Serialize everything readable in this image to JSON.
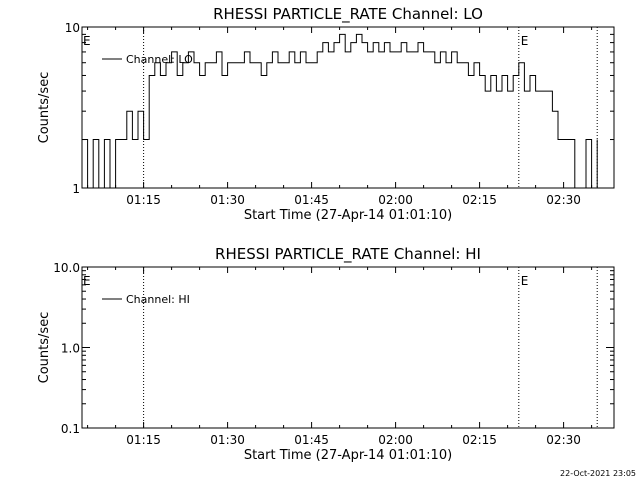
{
  "footer": {
    "timestamp": "22-Oct-2021 23:05"
  },
  "chart_data": [
    {
      "type": "line",
      "title": "RHESSI PARTICLE_RATE Channel: LO",
      "xlabel": "Start Time (27-Apr-14 01:01:10)",
      "ylabel": "Counts/sec",
      "yscale": "log",
      "ylim": [
        1,
        10
      ],
      "yticks": [
        1,
        10
      ],
      "ytick_labels": [
        "1",
        "10"
      ],
      "xlim": [
        "01:04:00",
        "02:39:00"
      ],
      "xtick_labels": [
        "01:15",
        "01:30",
        "01:45",
        "02:00",
        "02:15",
        "02:30"
      ],
      "grid": false,
      "legend_position": "top-left",
      "vlines": [
        {
          "x": "01:15:00",
          "label": ""
        },
        {
          "x": "02:22:00",
          "label": "E"
        },
        {
          "x": "02:36:00",
          "label": ""
        }
      ],
      "corner_label": "E",
      "series": [
        {
          "name": "Channel: LO",
          "x": [
            "01:04:00",
            "01:05:00",
            "01:06:00",
            "01:07:00",
            "01:08:00",
            "01:09:00",
            "01:10:00",
            "01:11:00",
            "01:12:00",
            "01:13:00",
            "01:14:00",
            "01:15:00",
            "01:16:00",
            "01:17:00",
            "01:18:00",
            "01:19:00",
            "01:20:00",
            "01:21:00",
            "01:22:00",
            "01:23:00",
            "01:24:00",
            "01:25:00",
            "01:26:00",
            "01:27:00",
            "01:28:00",
            "01:29:00",
            "01:30:00",
            "01:31:00",
            "01:32:00",
            "01:33:00",
            "01:34:00",
            "01:35:00",
            "01:36:00",
            "01:37:00",
            "01:38:00",
            "01:39:00",
            "01:40:00",
            "01:41:00",
            "01:42:00",
            "01:43:00",
            "01:44:00",
            "01:45:00",
            "01:46:00",
            "01:47:00",
            "01:48:00",
            "01:49:00",
            "01:50:00",
            "01:51:00",
            "01:52:00",
            "01:53:00",
            "01:54:00",
            "01:55:00",
            "01:56:00",
            "01:57:00",
            "01:58:00",
            "01:59:00",
            "02:00:00",
            "02:01:00",
            "02:02:00",
            "02:03:00",
            "02:04:00",
            "02:05:00",
            "02:06:00",
            "02:07:00",
            "02:08:00",
            "02:09:00",
            "02:10:00",
            "02:11:00",
            "02:12:00",
            "02:13:00",
            "02:14:00",
            "02:15:00",
            "02:16:00",
            "02:17:00",
            "02:18:00",
            "02:19:00",
            "02:20:00",
            "02:21:00",
            "02:22:00",
            "02:23:00",
            "02:24:00",
            "02:25:00",
            "02:26:00",
            "02:27:00",
            "02:28:00",
            "02:29:00",
            "02:30:00",
            "02:31:00",
            "02:32:00",
            "02:33:00",
            "02:34:00",
            "02:35:00",
            "02:36:00"
          ],
          "values": [
            2,
            1,
            2,
            1,
            2,
            1,
            2,
            2,
            3,
            2,
            3,
            2,
            5,
            6,
            5,
            6,
            7,
            5,
            6,
            7,
            6,
            5,
            6,
            6,
            7,
            5,
            6,
            6,
            6,
            7,
            6,
            6,
            5,
            6,
            7,
            6,
            6,
            7,
            6,
            7,
            6,
            6,
            7,
            8,
            7,
            8,
            9,
            7,
            8,
            9,
            8,
            7,
            8,
            7,
            8,
            7,
            7,
            8,
            7,
            7,
            8,
            7,
            7,
            6,
            7,
            6,
            7,
            6,
            6,
            5,
            6,
            5,
            4,
            5,
            4,
            5,
            4,
            5,
            6,
            4,
            5,
            4,
            4,
            4,
            3,
            2,
            2,
            2,
            1,
            1,
            2,
            1,
            2
          ]
        }
      ]
    },
    {
      "type": "line",
      "title": "RHESSI PARTICLE_RATE Channel: HI",
      "xlabel": "Start Time (27-Apr-14 01:01:10)",
      "ylabel": "Counts/sec",
      "yscale": "log",
      "ylim": [
        0.1,
        10
      ],
      "yticks": [
        0.1,
        1,
        10
      ],
      "ytick_labels": [
        "0.1",
        "1.0",
        "10.0"
      ],
      "xlim": [
        "01:04:00",
        "02:39:00"
      ],
      "xtick_labels": [
        "01:15",
        "01:30",
        "01:45",
        "02:00",
        "02:15",
        "02:30"
      ],
      "grid": false,
      "legend_position": "top-left",
      "vlines": [
        {
          "x": "01:15:00",
          "label": ""
        },
        {
          "x": "02:22:00",
          "label": "E"
        },
        {
          "x": "02:36:00",
          "label": ""
        }
      ],
      "corner_label": "E",
      "series": [
        {
          "name": "Channel: HI",
          "x": [],
          "values": []
        }
      ]
    }
  ]
}
